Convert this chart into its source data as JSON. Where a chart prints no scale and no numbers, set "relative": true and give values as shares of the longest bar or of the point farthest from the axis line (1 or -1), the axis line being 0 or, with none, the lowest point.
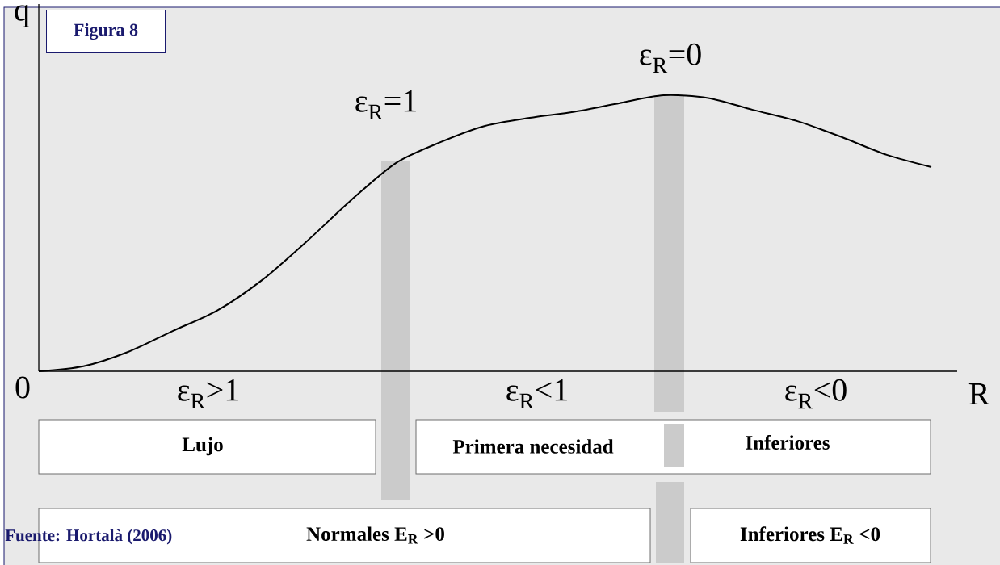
{
  "chart_data": {
    "type": "line",
    "title": "Figura 8",
    "xlabel": "R",
    "ylabel": "q",
    "relative": true,
    "marker": "none",
    "line_style": "solid",
    "categories": [
      null,
      null,
      null,
      null,
      null,
      null,
      null,
      null,
      null,
      null,
      null,
      null,
      null,
      null,
      null,
      null,
      null,
      null,
      null,
      null,
      null
    ],
    "series": [
      {
        "color": "#000000",
        "values": [
          0,
          0.018,
          0.07,
          0.146,
          0.22,
          0.33,
          0.47,
          0.62,
          0.754,
          0.83,
          0.889,
          0.918,
          0.94,
          0.971,
          1,
          0.99,
          0.947,
          0.906,
          0.848,
          0.784,
          0.74
        ]
      }
    ],
    "annotations": [
      "ε$_{R}$=1",
      "ε$_{R}$=0",
      "ε$_{R}$>1",
      "ε$_{R}$<1",
      "ε$_{R}$<0",
      "0",
      "Lujo",
      "Primera necesidad",
      "Inferiores",
      "Normales  E$_{R}$ >0",
      "Inferiores  E$_{R}$ <0",
      "Fuente: Hortalà (2006)"
    ]
  }
}
